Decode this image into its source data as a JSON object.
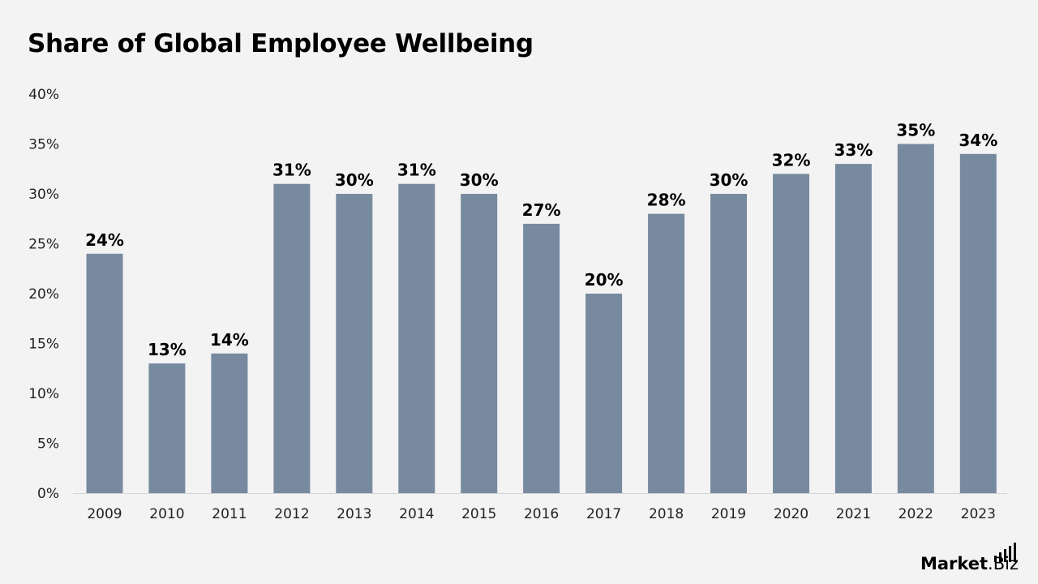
{
  "chart_data": {
    "type": "bar",
    "title": "Share of Global Employee Wellbeing",
    "xlabel": "",
    "ylabel": "",
    "categories": [
      "2009",
      "2010",
      "2011",
      "2012",
      "2013",
      "2014",
      "2015",
      "2016",
      "2017",
      "2018",
      "2019",
      "2020",
      "2021",
      "2022",
      "2023"
    ],
    "values": [
      24,
      13,
      14,
      31,
      30,
      31,
      30,
      27,
      20,
      28,
      30,
      32,
      33,
      35,
      34
    ],
    "value_suffix": "%",
    "ylim": [
      0,
      40
    ],
    "yticks": [
      0,
      5,
      10,
      15,
      20,
      25,
      30,
      35,
      40
    ],
    "ytick_labels": [
      "0%",
      "5%",
      "10%",
      "15%",
      "20%",
      "25%",
      "30%",
      "35%",
      "40%"
    ],
    "grid": false,
    "legend": "none",
    "bar_color": "#778a9f"
  },
  "logo": {
    "bold": "Market",
    "light": ".Biz"
  }
}
